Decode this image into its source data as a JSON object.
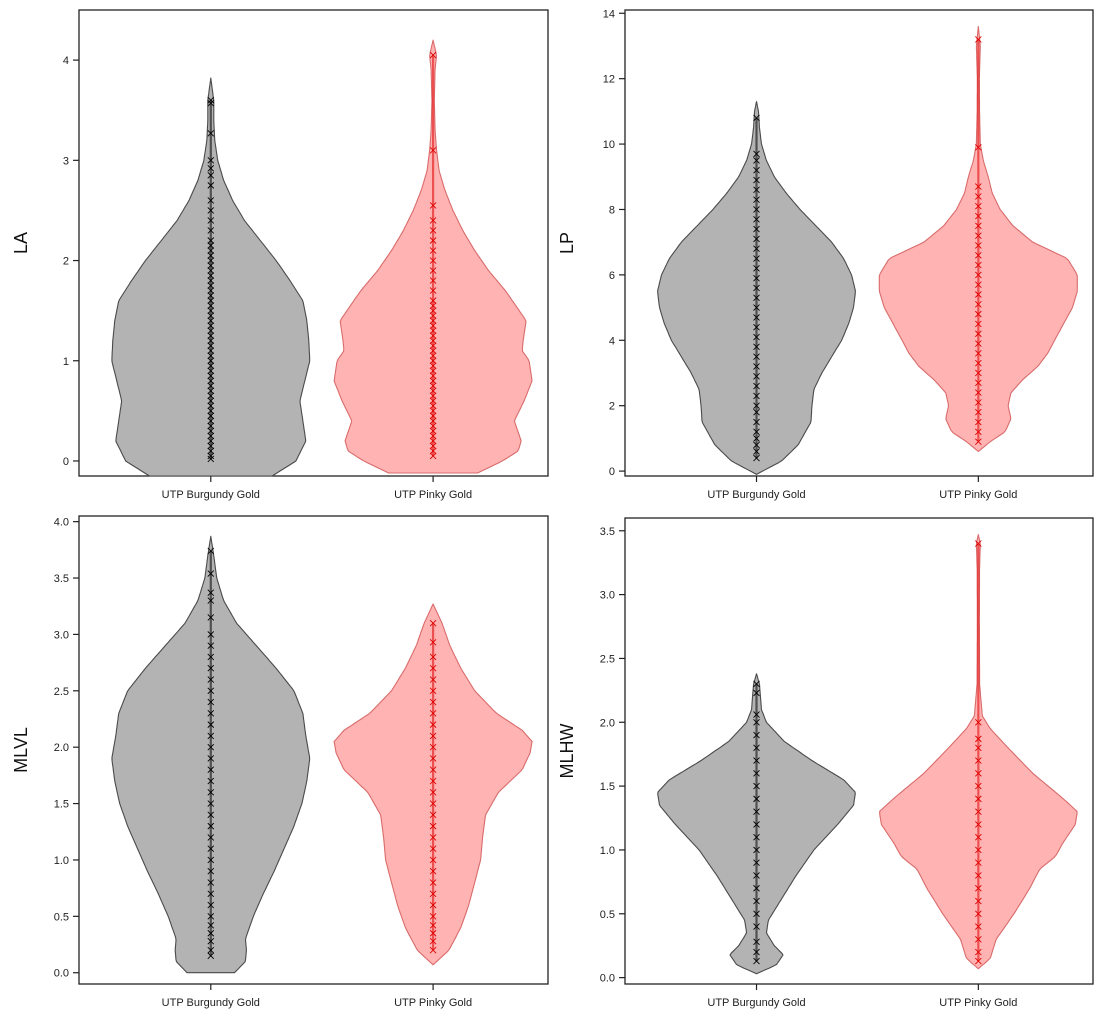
{
  "colors": {
    "group1_fill": "#b3b3b3",
    "group1_stroke": "#4a4a4a",
    "group1_points": "#000000",
    "group2_fill": "#ffb3b3",
    "group2_stroke": "#d96b6b",
    "group2_points": "#e00000"
  },
  "chart_data": [
    {
      "type": "violin",
      "ylabel": "LA",
      "categories": [
        "UTP Burgundy Gold",
        "UTP Pinky Gold"
      ],
      "ylim": [
        -0.15,
        4.5
      ],
      "yticks": [
        0,
        1,
        2,
        3,
        4
      ],
      "grid": false,
      "series": [
        {
          "range": [
            -0.15,
            3.82
          ],
          "profile": [
            [
              -0.15,
              0.62
            ],
            [
              0.0,
              0.86
            ],
            [
              0.2,
              0.96
            ],
            [
              0.4,
              0.93
            ],
            [
              0.6,
              0.9
            ],
            [
              0.8,
              0.95
            ],
            [
              1.0,
              1.0
            ],
            [
              1.2,
              0.99
            ],
            [
              1.4,
              0.97
            ],
            [
              1.6,
              0.93
            ],
            [
              1.8,
              0.8
            ],
            [
              2.0,
              0.66
            ],
            [
              2.2,
              0.5
            ],
            [
              2.4,
              0.34
            ],
            [
              2.6,
              0.22
            ],
            [
              2.8,
              0.13
            ],
            [
              3.0,
              0.07
            ],
            [
              3.2,
              0.04
            ],
            [
              3.4,
              0.03
            ],
            [
              3.6,
              0.03
            ],
            [
              3.82,
              0.0
            ]
          ],
          "points": [
            0.02,
            0.05,
            0.1,
            0.15,
            0.2,
            0.25,
            0.3,
            0.35,
            0.4,
            0.45,
            0.5,
            0.55,
            0.6,
            0.65,
            0.7,
            0.75,
            0.8,
            0.85,
            0.9,
            0.95,
            1.0,
            1.05,
            1.1,
            1.15,
            1.2,
            1.25,
            1.3,
            1.35,
            1.4,
            1.45,
            1.5,
            1.55,
            1.6,
            1.65,
            1.7,
            1.75,
            1.8,
            1.85,
            1.9,
            1.95,
            2.0,
            2.05,
            2.1,
            2.15,
            2.2,
            2.3,
            2.4,
            2.5,
            2.6,
            2.75,
            2.85,
            2.92,
            3.0,
            3.27,
            3.57,
            3.6
          ]
        },
        {
          "range": [
            -0.12,
            4.2
          ],
          "profile": [
            [
              -0.12,
              0.45
            ],
            [
              0.0,
              0.7
            ],
            [
              0.1,
              0.86
            ],
            [
              0.2,
              0.89
            ],
            [
              0.4,
              0.82
            ],
            [
              0.6,
              0.92
            ],
            [
              0.8,
              1.0
            ],
            [
              1.0,
              0.97
            ],
            [
              1.1,
              0.9
            ],
            [
              1.2,
              0.91
            ],
            [
              1.4,
              0.94
            ],
            [
              1.5,
              0.87
            ],
            [
              1.7,
              0.73
            ],
            [
              1.9,
              0.56
            ],
            [
              2.1,
              0.42
            ],
            [
              2.3,
              0.3
            ],
            [
              2.5,
              0.2
            ],
            [
              2.7,
              0.12
            ],
            [
              2.9,
              0.06
            ],
            [
              3.1,
              0.035
            ],
            [
              3.3,
              0.02
            ],
            [
              3.6,
              0.012
            ],
            [
              3.9,
              0.02
            ],
            [
              4.05,
              0.035
            ],
            [
              4.2,
              0.0
            ]
          ],
          "points": [
            0.05,
            0.1,
            0.15,
            0.2,
            0.25,
            0.3,
            0.35,
            0.4,
            0.45,
            0.5,
            0.55,
            0.6,
            0.65,
            0.7,
            0.75,
            0.8,
            0.85,
            0.9,
            0.95,
            1.0,
            1.05,
            1.1,
            1.15,
            1.2,
            1.25,
            1.3,
            1.35,
            1.4,
            1.45,
            1.5,
            1.55,
            1.6,
            1.7,
            1.8,
            1.9,
            2.0,
            2.1,
            2.2,
            2.3,
            2.4,
            2.55,
            3.1,
            4.05
          ]
        }
      ]
    },
    {
      "type": "violin",
      "ylabel": "LP",
      "categories": [
        "UTP Burgundy Gold",
        "UTP Pinky Gold"
      ],
      "ylim": [
        -0.15,
        14.1
      ],
      "yticks": [
        0,
        2,
        4,
        6,
        8,
        10,
        12,
        14
      ],
      "grid": false,
      "series": [
        {
          "range": [
            -0.1,
            11.3
          ],
          "profile": [
            [
              -0.1,
              0.0
            ],
            [
              0.3,
              0.25
            ],
            [
              0.8,
              0.42
            ],
            [
              1.5,
              0.55
            ],
            [
              2.0,
              0.56
            ],
            [
              2.5,
              0.58
            ],
            [
              3.0,
              0.66
            ],
            [
              3.5,
              0.76
            ],
            [
              4.0,
              0.86
            ],
            [
              4.5,
              0.93
            ],
            [
              5.0,
              0.98
            ],
            [
              5.5,
              1.0
            ],
            [
              6.0,
              0.96
            ],
            [
              6.5,
              0.88
            ],
            [
              7.0,
              0.76
            ],
            [
              7.5,
              0.6
            ],
            [
              8.0,
              0.44
            ],
            [
              8.5,
              0.3
            ],
            [
              9.0,
              0.18
            ],
            [
              9.5,
              0.1
            ],
            [
              10.0,
              0.05
            ],
            [
              10.5,
              0.03
            ],
            [
              11.0,
              0.02
            ],
            [
              11.3,
              0.0
            ]
          ],
          "points": [
            0.4,
            0.6,
            0.8,
            1.0,
            1.2,
            1.5,
            1.8,
            2.0,
            2.3,
            2.6,
            2.9,
            3.2,
            3.5,
            3.8,
            4.1,
            4.4,
            4.7,
            5.0,
            5.3,
            5.6,
            5.9,
            6.2,
            6.5,
            6.8,
            7.1,
            7.4,
            7.7,
            8.0,
            8.3,
            8.6,
            8.9,
            9.2,
            9.5,
            9.7,
            10.8
          ]
        },
        {
          "range": [
            0.6,
            13.6
          ],
          "profile": [
            [
              0.6,
              0.0
            ],
            [
              0.9,
              0.12
            ],
            [
              1.2,
              0.27
            ],
            [
              1.6,
              0.33
            ],
            [
              2.0,
              0.3
            ],
            [
              2.4,
              0.33
            ],
            [
              2.8,
              0.45
            ],
            [
              3.2,
              0.6
            ],
            [
              3.6,
              0.7
            ],
            [
              4.0,
              0.77
            ],
            [
              4.5,
              0.86
            ],
            [
              5.0,
              0.95
            ],
            [
              5.5,
              1.0
            ],
            [
              6.0,
              1.0
            ],
            [
              6.5,
              0.9
            ],
            [
              7.0,
              0.55
            ],
            [
              7.5,
              0.35
            ],
            [
              8.0,
              0.22
            ],
            [
              8.5,
              0.14
            ],
            [
              9.0,
              0.1
            ],
            [
              9.5,
              0.05
            ],
            [
              10.0,
              0.02
            ],
            [
              11.0,
              0.012
            ],
            [
              12.0,
              0.01
            ],
            [
              13.0,
              0.02
            ],
            [
              13.6,
              0.0
            ]
          ],
          "points": [
            0.9,
            1.2,
            1.5,
            1.8,
            2.1,
            2.4,
            2.7,
            3.0,
            3.3,
            3.6,
            3.9,
            4.2,
            4.5,
            4.8,
            5.1,
            5.4,
            5.7,
            6.0,
            6.3,
            6.6,
            6.9,
            7.2,
            7.5,
            7.8,
            8.1,
            8.4,
            8.7,
            9.9,
            13.2
          ]
        }
      ]
    },
    {
      "type": "violin",
      "ylabel": "MLVL",
      "categories": [
        "UTP Burgundy Gold",
        "UTP Pinky Gold"
      ],
      "ylim": [
        -0.1,
        4.05
      ],
      "yticks": [
        0.0,
        0.5,
        1.0,
        1.5,
        2.0,
        2.5,
        3.0,
        3.5,
        4.0
      ],
      "grid": false,
      "series": [
        {
          "range": [
            0.0,
            3.87
          ],
          "profile": [
            [
              0.0,
              0.24
            ],
            [
              0.1,
              0.35
            ],
            [
              0.2,
              0.36
            ],
            [
              0.3,
              0.35
            ],
            [
              0.5,
              0.43
            ],
            [
              0.7,
              0.53
            ],
            [
              0.9,
              0.64
            ],
            [
              1.1,
              0.74
            ],
            [
              1.3,
              0.84
            ],
            [
              1.5,
              0.92
            ],
            [
              1.7,
              0.97
            ],
            [
              1.9,
              1.0
            ],
            [
              2.1,
              0.96
            ],
            [
              2.3,
              0.93
            ],
            [
              2.5,
              0.84
            ],
            [
              2.7,
              0.66
            ],
            [
              2.9,
              0.46
            ],
            [
              3.1,
              0.26
            ],
            [
              3.3,
              0.13
            ],
            [
              3.5,
              0.06
            ],
            [
              3.7,
              0.03
            ],
            [
              3.87,
              0.0
            ]
          ],
          "points": [
            0.15,
            0.2,
            0.28,
            0.35,
            0.42,
            0.5,
            0.6,
            0.7,
            0.8,
            0.9,
            1.0,
            1.1,
            1.2,
            1.3,
            1.4,
            1.5,
            1.6,
            1.7,
            1.8,
            1.9,
            2.0,
            2.1,
            2.2,
            2.3,
            2.4,
            2.5,
            2.6,
            2.7,
            2.8,
            2.9,
            3.0,
            3.15,
            3.3,
            3.37,
            3.54,
            3.74
          ]
        },
        {
          "range": [
            0.07,
            3.27
          ],
          "profile": [
            [
              0.07,
              0.0
            ],
            [
              0.2,
              0.16
            ],
            [
              0.4,
              0.28
            ],
            [
              0.6,
              0.36
            ],
            [
              0.8,
              0.42
            ],
            [
              1.0,
              0.48
            ],
            [
              1.2,
              0.5
            ],
            [
              1.4,
              0.53
            ],
            [
              1.6,
              0.66
            ],
            [
              1.8,
              0.9
            ],
            [
              1.95,
              0.98
            ],
            [
              2.05,
              1.0
            ],
            [
              2.15,
              0.9
            ],
            [
              2.3,
              0.64
            ],
            [
              2.5,
              0.42
            ],
            [
              2.7,
              0.28
            ],
            [
              2.9,
              0.17
            ],
            [
              3.1,
              0.09
            ],
            [
              3.27,
              0.0
            ]
          ],
          "points": [
            0.2,
            0.28,
            0.35,
            0.42,
            0.5,
            0.6,
            0.7,
            0.8,
            0.9,
            1.0,
            1.1,
            1.2,
            1.3,
            1.4,
            1.5,
            1.6,
            1.7,
            1.8,
            1.9,
            2.0,
            2.1,
            2.2,
            2.3,
            2.4,
            2.5,
            2.6,
            2.7,
            2.8,
            2.93,
            3.1
          ]
        }
      ]
    },
    {
      "type": "violin",
      "ylabel": "MLHW",
      "categories": [
        "UTP Burgundy Gold",
        "UTP Pinky Gold"
      ],
      "ylim": [
        -0.05,
        3.6
      ],
      "yticks": [
        0.0,
        0.5,
        1.0,
        1.5,
        2.0,
        2.5,
        3.0,
        3.5
      ],
      "grid": false,
      "series": [
        {
          "range": [
            0.03,
            2.38
          ],
          "profile": [
            [
              0.03,
              0.0
            ],
            [
              0.1,
              0.2
            ],
            [
              0.18,
              0.27
            ],
            [
              0.25,
              0.18
            ],
            [
              0.35,
              0.1
            ],
            [
              0.45,
              0.12
            ],
            [
              0.6,
              0.24
            ],
            [
              0.8,
              0.4
            ],
            [
              1.0,
              0.58
            ],
            [
              1.2,
              0.82
            ],
            [
              1.35,
              0.98
            ],
            [
              1.45,
              1.0
            ],
            [
              1.55,
              0.88
            ],
            [
              1.7,
              0.56
            ],
            [
              1.85,
              0.28
            ],
            [
              2.0,
              0.1
            ],
            [
              2.1,
              0.05
            ],
            [
              2.2,
              0.04
            ],
            [
              2.3,
              0.03
            ],
            [
              2.38,
              0.0
            ]
          ],
          "points": [
            0.13,
            0.2,
            0.28,
            0.4,
            0.5,
            0.6,
            0.7,
            0.8,
            0.9,
            1.0,
            1.1,
            1.2,
            1.3,
            1.4,
            1.5,
            1.6,
            1.7,
            1.8,
            1.9,
            2.0,
            2.06,
            2.23,
            2.3
          ]
        },
        {
          "range": [
            0.07,
            3.47
          ],
          "profile": [
            [
              0.07,
              0.0
            ],
            [
              0.15,
              0.12
            ],
            [
              0.3,
              0.18
            ],
            [
              0.5,
              0.36
            ],
            [
              0.7,
              0.52
            ],
            [
              0.85,
              0.62
            ],
            [
              0.95,
              0.78
            ],
            [
              1.05,
              0.85
            ],
            [
              1.2,
              0.98
            ],
            [
              1.3,
              1.0
            ],
            [
              1.4,
              0.86
            ],
            [
              1.6,
              0.55
            ],
            [
              1.8,
              0.3
            ],
            [
              1.95,
              0.12
            ],
            [
              2.05,
              0.04
            ],
            [
              2.3,
              0.013
            ],
            [
              2.8,
              0.01
            ],
            [
              3.2,
              0.012
            ],
            [
              3.4,
              0.02
            ],
            [
              3.47,
              0.0
            ]
          ],
          "points": [
            0.13,
            0.2,
            0.3,
            0.4,
            0.5,
            0.6,
            0.7,
            0.8,
            0.9,
            1.0,
            1.1,
            1.2,
            1.3,
            1.4,
            1.5,
            1.6,
            1.7,
            1.8,
            1.87,
            2.0,
            3.4
          ]
        }
      ]
    }
  ]
}
